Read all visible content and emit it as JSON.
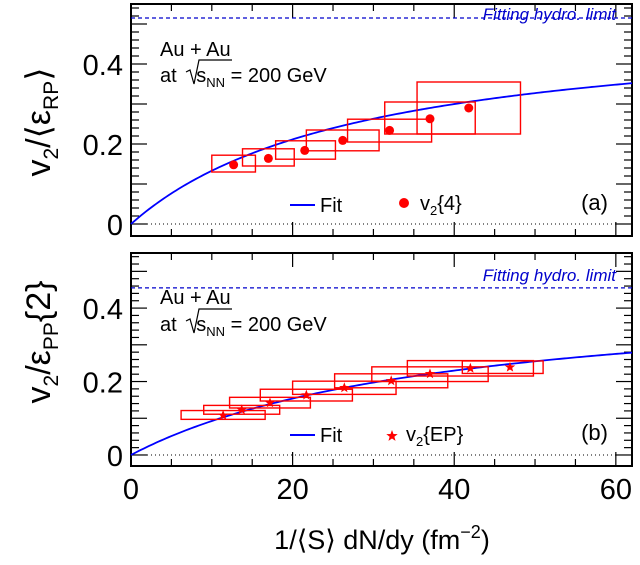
{
  "xaxis": {
    "label_main": "1/⟨S⟩ dN/dy (fm",
    "label_sup": "−2",
    "label_close": ")",
    "xlim": [
      0,
      62
    ],
    "ticks": [
      "0",
      "20",
      "40",
      "60"
    ]
  },
  "chart_data": [
    {
      "type": "scatter",
      "panel": "(a)",
      "ylabel": {
        "main": "v",
        "sub1": "2",
        "mid": "/⟨ε",
        "sub2": "RP",
        "end": "⟩"
      },
      "ylim": [
        -0.03,
        0.55
      ],
      "yticks": [
        "0",
        "0.2",
        "0.4"
      ],
      "hydro_limit": {
        "label": "Fitting hydro. limit",
        "y": 0.515
      },
      "annotation": {
        "line1": "Au + Au",
        "line2_pre": "at ",
        "line2_sqrt": "s",
        "line2_sub": "NN",
        "line2_post": " = 200 GeV"
      },
      "legend": {
        "fit_label": "Fit",
        "data_label_main": "v",
        "data_label_sub": "2",
        "data_label_end": "{4}"
      },
      "fit": {
        "A": 0.515,
        "x0": 28.7,
        "color": "#0000ff"
      },
      "series": [
        {
          "name": "v2{4}",
          "marker": "circle",
          "color": "#ff0000",
          "points": [
            {
              "x": 12.7,
              "y": 0.148,
              "box_x": [
                10.0,
                15.4
              ],
              "box_y": [
                0.13,
                0.172
              ]
            },
            {
              "x": 17.0,
              "y": 0.164,
              "box_x": [
                13.8,
                20.2
              ],
              "box_y": [
                0.145,
                0.188
              ]
            },
            {
              "x": 21.5,
              "y": 0.184,
              "box_x": [
                17.9,
                25.3
              ],
              "box_y": [
                0.162,
                0.208
              ]
            },
            {
              "x": 26.2,
              "y": 0.209,
              "box_x": [
                21.7,
                30.7
              ],
              "box_y": [
                0.183,
                0.235
              ]
            },
            {
              "x": 32.0,
              "y": 0.234,
              "box_x": [
                26.8,
                37.2
              ],
              "box_y": [
                0.205,
                0.262
              ]
            },
            {
              "x": 37.0,
              "y": 0.263,
              "box_x": [
                31.4,
                42.6
              ],
              "box_y": [
                0.225,
                0.305
              ]
            },
            {
              "x": 41.8,
              "y": 0.29,
              "box_x": [
                35.4,
                48.2
              ],
              "box_y": [
                0.225,
                0.355
              ]
            }
          ]
        }
      ]
    },
    {
      "type": "scatter",
      "panel": "(b)",
      "ylabel": {
        "main": "v",
        "sub1": "2",
        "mid": "/ε",
        "sub2": "PP",
        "end": "{2}"
      },
      "ylim": [
        -0.03,
        0.55
      ],
      "yticks": [
        "0",
        "0.2",
        "0.4"
      ],
      "hydro_limit": {
        "label": "Fitting hydro. limit",
        "y": 0.455
      },
      "annotation": {
        "line1": "Au + Au",
        "line2_pre": "at ",
        "line2_sqrt": "s",
        "line2_sub": "NN",
        "line2_post": " = 200 GeV"
      },
      "legend": {
        "fit_label": "Fit",
        "data_label_main": "v",
        "data_label_sub": "2",
        "data_label_end": "{EP}"
      },
      "fit": {
        "A": 0.455,
        "x0": 39.2,
        "color": "#0000ff"
      },
      "series": [
        {
          "name": "v2{EP}",
          "marker": "star",
          "color": "#ff0000",
          "points": [
            {
              "x": 11.4,
              "y": 0.108,
              "box_x": [
                6.2,
                16.6
              ],
              "box_y": [
                0.097,
                0.121
              ]
            },
            {
              "x": 13.7,
              "y": 0.123,
              "box_x": [
                9.0,
                18.4
              ],
              "box_y": [
                0.111,
                0.135
              ]
            },
            {
              "x": 17.2,
              "y": 0.142,
              "box_x": [
                12.2,
                22.2
              ],
              "box_y": [
                0.128,
                0.157
              ]
            },
            {
              "x": 21.7,
              "y": 0.163,
              "box_x": [
                16.0,
                27.4
              ],
              "box_y": [
                0.147,
                0.179
              ]
            },
            {
              "x": 26.4,
              "y": 0.183,
              "box_x": [
                20.0,
                32.8
              ],
              "box_y": [
                0.165,
                0.201
              ]
            },
            {
              "x": 32.2,
              "y": 0.202,
              "box_x": [
                25.2,
                39.2
              ],
              "box_y": [
                0.183,
                0.221
              ]
            },
            {
              "x": 37.0,
              "y": 0.221,
              "box_x": [
                29.8,
                44.2
              ],
              "box_y": [
                0.2,
                0.24
              ]
            },
            {
              "x": 42.0,
              "y": 0.236,
              "box_x": [
                34.2,
                49.8
              ],
              "box_y": [
                0.215,
                0.257
              ]
            },
            {
              "x": 46.9,
              "y": 0.239,
              "box_x": [
                41.0,
                51.0
              ],
              "box_y": [
                0.222,
                0.256
              ]
            }
          ]
        }
      ]
    }
  ]
}
